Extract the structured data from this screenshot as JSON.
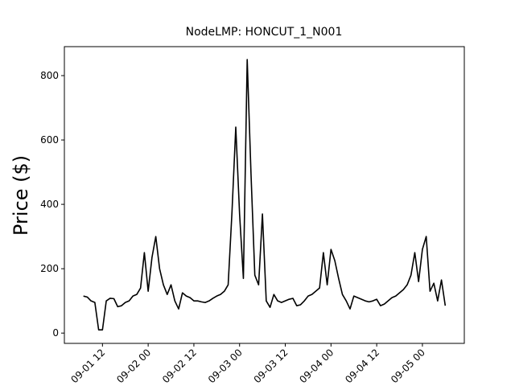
{
  "chart_data": {
    "type": "line",
    "title": "NodeLMP: HONCUT_1_N001",
    "y_label": "Price ($)",
    "x": [
      "09-01 07",
      "09-01 08",
      "09-01 09",
      "09-01 10",
      "09-01 11",
      "09-01 12",
      "09-01 13",
      "09-01 14",
      "09-01 15",
      "09-01 16",
      "09-01 17",
      "09-01 18",
      "09-01 19",
      "09-01 20",
      "09-01 21",
      "09-01 22",
      "09-01 23",
      "09-02 00",
      "09-02 01",
      "09-02 02",
      "09-02 03",
      "09-02 04",
      "09-02 05",
      "09-02 06",
      "09-02 07",
      "09-02 08",
      "09-02 09",
      "09-02 10",
      "09-02 11",
      "09-02 12",
      "09-02 13",
      "09-02 14",
      "09-02 15",
      "09-02 16",
      "09-02 17",
      "09-02 18",
      "09-02 19",
      "09-02 20",
      "09-02 21",
      "09-02 22",
      "09-02 23",
      "09-03 00",
      "09-03 01",
      "09-03 02",
      "09-03 03",
      "09-03 04",
      "09-03 05",
      "09-03 06",
      "09-03 07",
      "09-03 08",
      "09-03 09",
      "09-03 10",
      "09-03 11",
      "09-03 12",
      "09-03 13",
      "09-03 14",
      "09-03 15",
      "09-03 16",
      "09-03 17",
      "09-03 18",
      "09-03 19",
      "09-03 20",
      "09-03 21",
      "09-03 22",
      "09-03 23",
      "09-04 00",
      "09-04 01",
      "09-04 02",
      "09-04 03",
      "09-04 04",
      "09-04 05",
      "09-04 06",
      "09-04 07",
      "09-04 08",
      "09-04 09",
      "09-04 10",
      "09-04 11",
      "09-04 12",
      "09-04 13",
      "09-04 14",
      "09-04 15",
      "09-04 16",
      "09-04 17",
      "09-04 18",
      "09-04 19",
      "09-04 20",
      "09-04 21",
      "09-04 22",
      "09-04 23",
      "09-05 00",
      "09-05 01",
      "09-05 02",
      "09-05 03",
      "09-05 04",
      "09-05 05",
      "09-05 06"
    ],
    "series": [
      {
        "name": "HONCUT_1_N001",
        "color": "#000000",
        "values": [
          115,
          112,
          100,
          95,
          10,
          10,
          100,
          108,
          107,
          82,
          85,
          95,
          100,
          115,
          120,
          140,
          250,
          130,
          235,
          300,
          200,
          150,
          120,
          150,
          100,
          75,
          125,
          115,
          110,
          100,
          100,
          97,
          95,
          100,
          108,
          115,
          120,
          130,
          150,
          375,
          640,
          370,
          170,
          850,
          495,
          180,
          150,
          370,
          100,
          80,
          120,
          100,
          95,
          100,
          105,
          108,
          85,
          88,
          100,
          115,
          120,
          130,
          140,
          250,
          150,
          260,
          225,
          170,
          120,
          100,
          75,
          115,
          110,
          105,
          100,
          97,
          100,
          105,
          85,
          90,
          100,
          110,
          115,
          125,
          135,
          150,
          180,
          250,
          160,
          260,
          300,
          130,
          155,
          100,
          165,
          85
        ]
      }
    ],
    "xlim": [
      "09-01 02",
      "09-05 11"
    ],
    "xticks": [
      "09-01 12",
      "09-02 00",
      "09-02 12",
      "09-03 00",
      "09-03 12",
      "09-04 00",
      "09-04 12",
      "09-05 00"
    ],
    "ylim": [
      -32,
      890
    ],
    "yticks": [
      0,
      200,
      400,
      600,
      800
    ]
  }
}
